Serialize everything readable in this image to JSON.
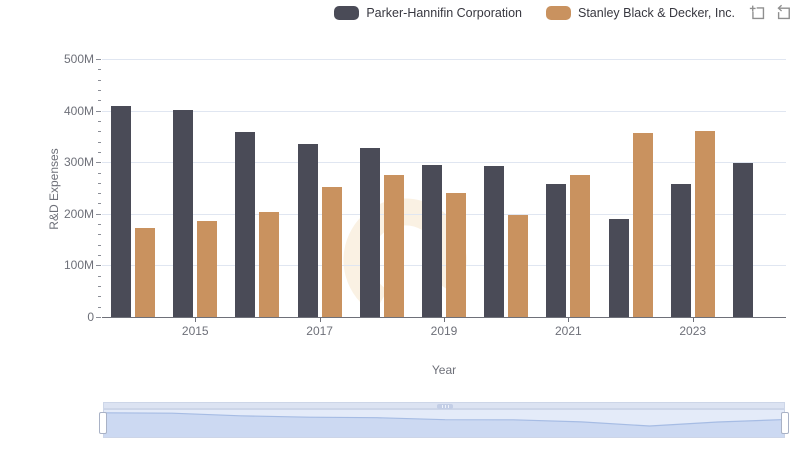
{
  "legend": {
    "items": [
      {
        "label": "Parker-Hannifin Corporation",
        "color": "#4a4b57"
      },
      {
        "label": "Stanley Black & Decker, Inc.",
        "color": "#c9925f"
      }
    ]
  },
  "toolbox": {
    "icons": [
      {
        "name": "data-zoom-select-icon"
      },
      {
        "name": "restore-icon"
      }
    ]
  },
  "chart_data": {
    "type": "bar",
    "title": "",
    "xlabel": "Year",
    "ylabel": "R&D Expenses",
    "unit": "millions USD",
    "x": [
      2014,
      2015,
      2016,
      2017,
      2018,
      2019,
      2020,
      2021,
      2022,
      2023,
      2024
    ],
    "series": [
      {
        "name": "Parker-Hannifin Corporation",
        "color": "#4a4b57",
        "values": [
          409,
          402,
          359,
          336,
          327,
          295,
          293,
          258,
          190,
          257,
          298
        ]
      },
      {
        "name": "Stanley Black & Decker, Inc.",
        "color": "#c9925f",
        "values": [
          173,
          187,
          203,
          251,
          276,
          240,
          198,
          276,
          357,
          361,
          null
        ]
      }
    ],
    "ylim": [
      0,
      500
    ],
    "ytick_labels": [
      "0",
      "100M",
      "200M",
      "300M",
      "400M",
      "500M"
    ],
    "ytick_step": 100,
    "minor_ytick_step": 20,
    "xtick_labels": [
      "2015",
      "2017",
      "2019",
      "2021",
      "2023"
    ],
    "grid": true,
    "legend_position": "top-right"
  },
  "slider": {
    "shadow_series": "Parker-Hannifin Corporation",
    "range_start_percent": 0,
    "range_end_percent": 100
  },
  "colors": {
    "grid": "#e0e6f1",
    "axis": "#6e7079",
    "watermark": "#faf1e3",
    "slider_area_fill": "#ccd9f2",
    "slider_line": "#a6bce4"
  }
}
